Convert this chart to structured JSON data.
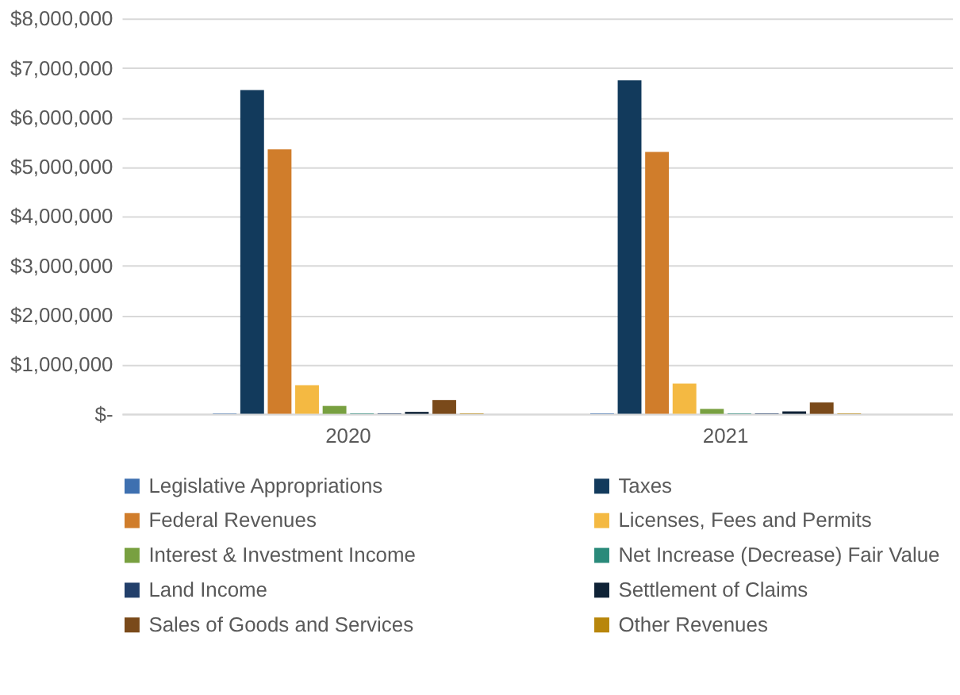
{
  "chart_data": {
    "type": "bar",
    "categories": [
      "2020",
      "2021"
    ],
    "series": [
      {
        "name": "Legislative Appropriations",
        "color": "#3e70b0",
        "values": [
          10000,
          10000
        ]
      },
      {
        "name": "Taxes",
        "color": "#123a5c",
        "values": [
          6550000,
          6750000
        ]
      },
      {
        "name": "Federal Revenues",
        "color": "#d07d2b",
        "values": [
          5350000,
          5300000
        ]
      },
      {
        "name": "Licenses, Fees and Permits",
        "color": "#f4b942",
        "values": [
          580000,
          610000
        ]
      },
      {
        "name": "Interest & Investment Income",
        "color": "#78a040",
        "values": [
          160000,
          100000
        ]
      },
      {
        "name": "Net Increase (Decrease) Fair Value",
        "color": "#2a8a7a",
        "values": [
          10000,
          10000
        ]
      },
      {
        "name": "Land Income",
        "color": "#223f6a",
        "values": [
          10000,
          10000
        ]
      },
      {
        "name": "Settlement of Claims",
        "color": "#0f2236",
        "values": [
          40000,
          50000
        ]
      },
      {
        "name": "Sales of Goods and Services",
        "color": "#7a4a1a",
        "values": [
          280000,
          230000
        ]
      },
      {
        "name": "Other Revenues",
        "color": "#b8860b",
        "values": [
          10000,
          10000
        ]
      }
    ],
    "ylim": [
      0,
      8000000
    ],
    "yticks": [
      {
        "value": 0,
        "label": "$-"
      },
      {
        "value": 1000000,
        "label": "$1,000,000"
      },
      {
        "value": 2000000,
        "label": "$2,000,000"
      },
      {
        "value": 3000000,
        "label": "$3,000,000"
      },
      {
        "value": 4000000,
        "label": "$4,000,000"
      },
      {
        "value": 5000000,
        "label": "$5,000,000"
      },
      {
        "value": 6000000,
        "label": "$6,000,000"
      },
      {
        "value": 7000000,
        "label": "$7,000,000"
      },
      {
        "value": 8000000,
        "label": "$8,000,000"
      }
    ],
    "grid": "y",
    "legend": "bottom"
  }
}
